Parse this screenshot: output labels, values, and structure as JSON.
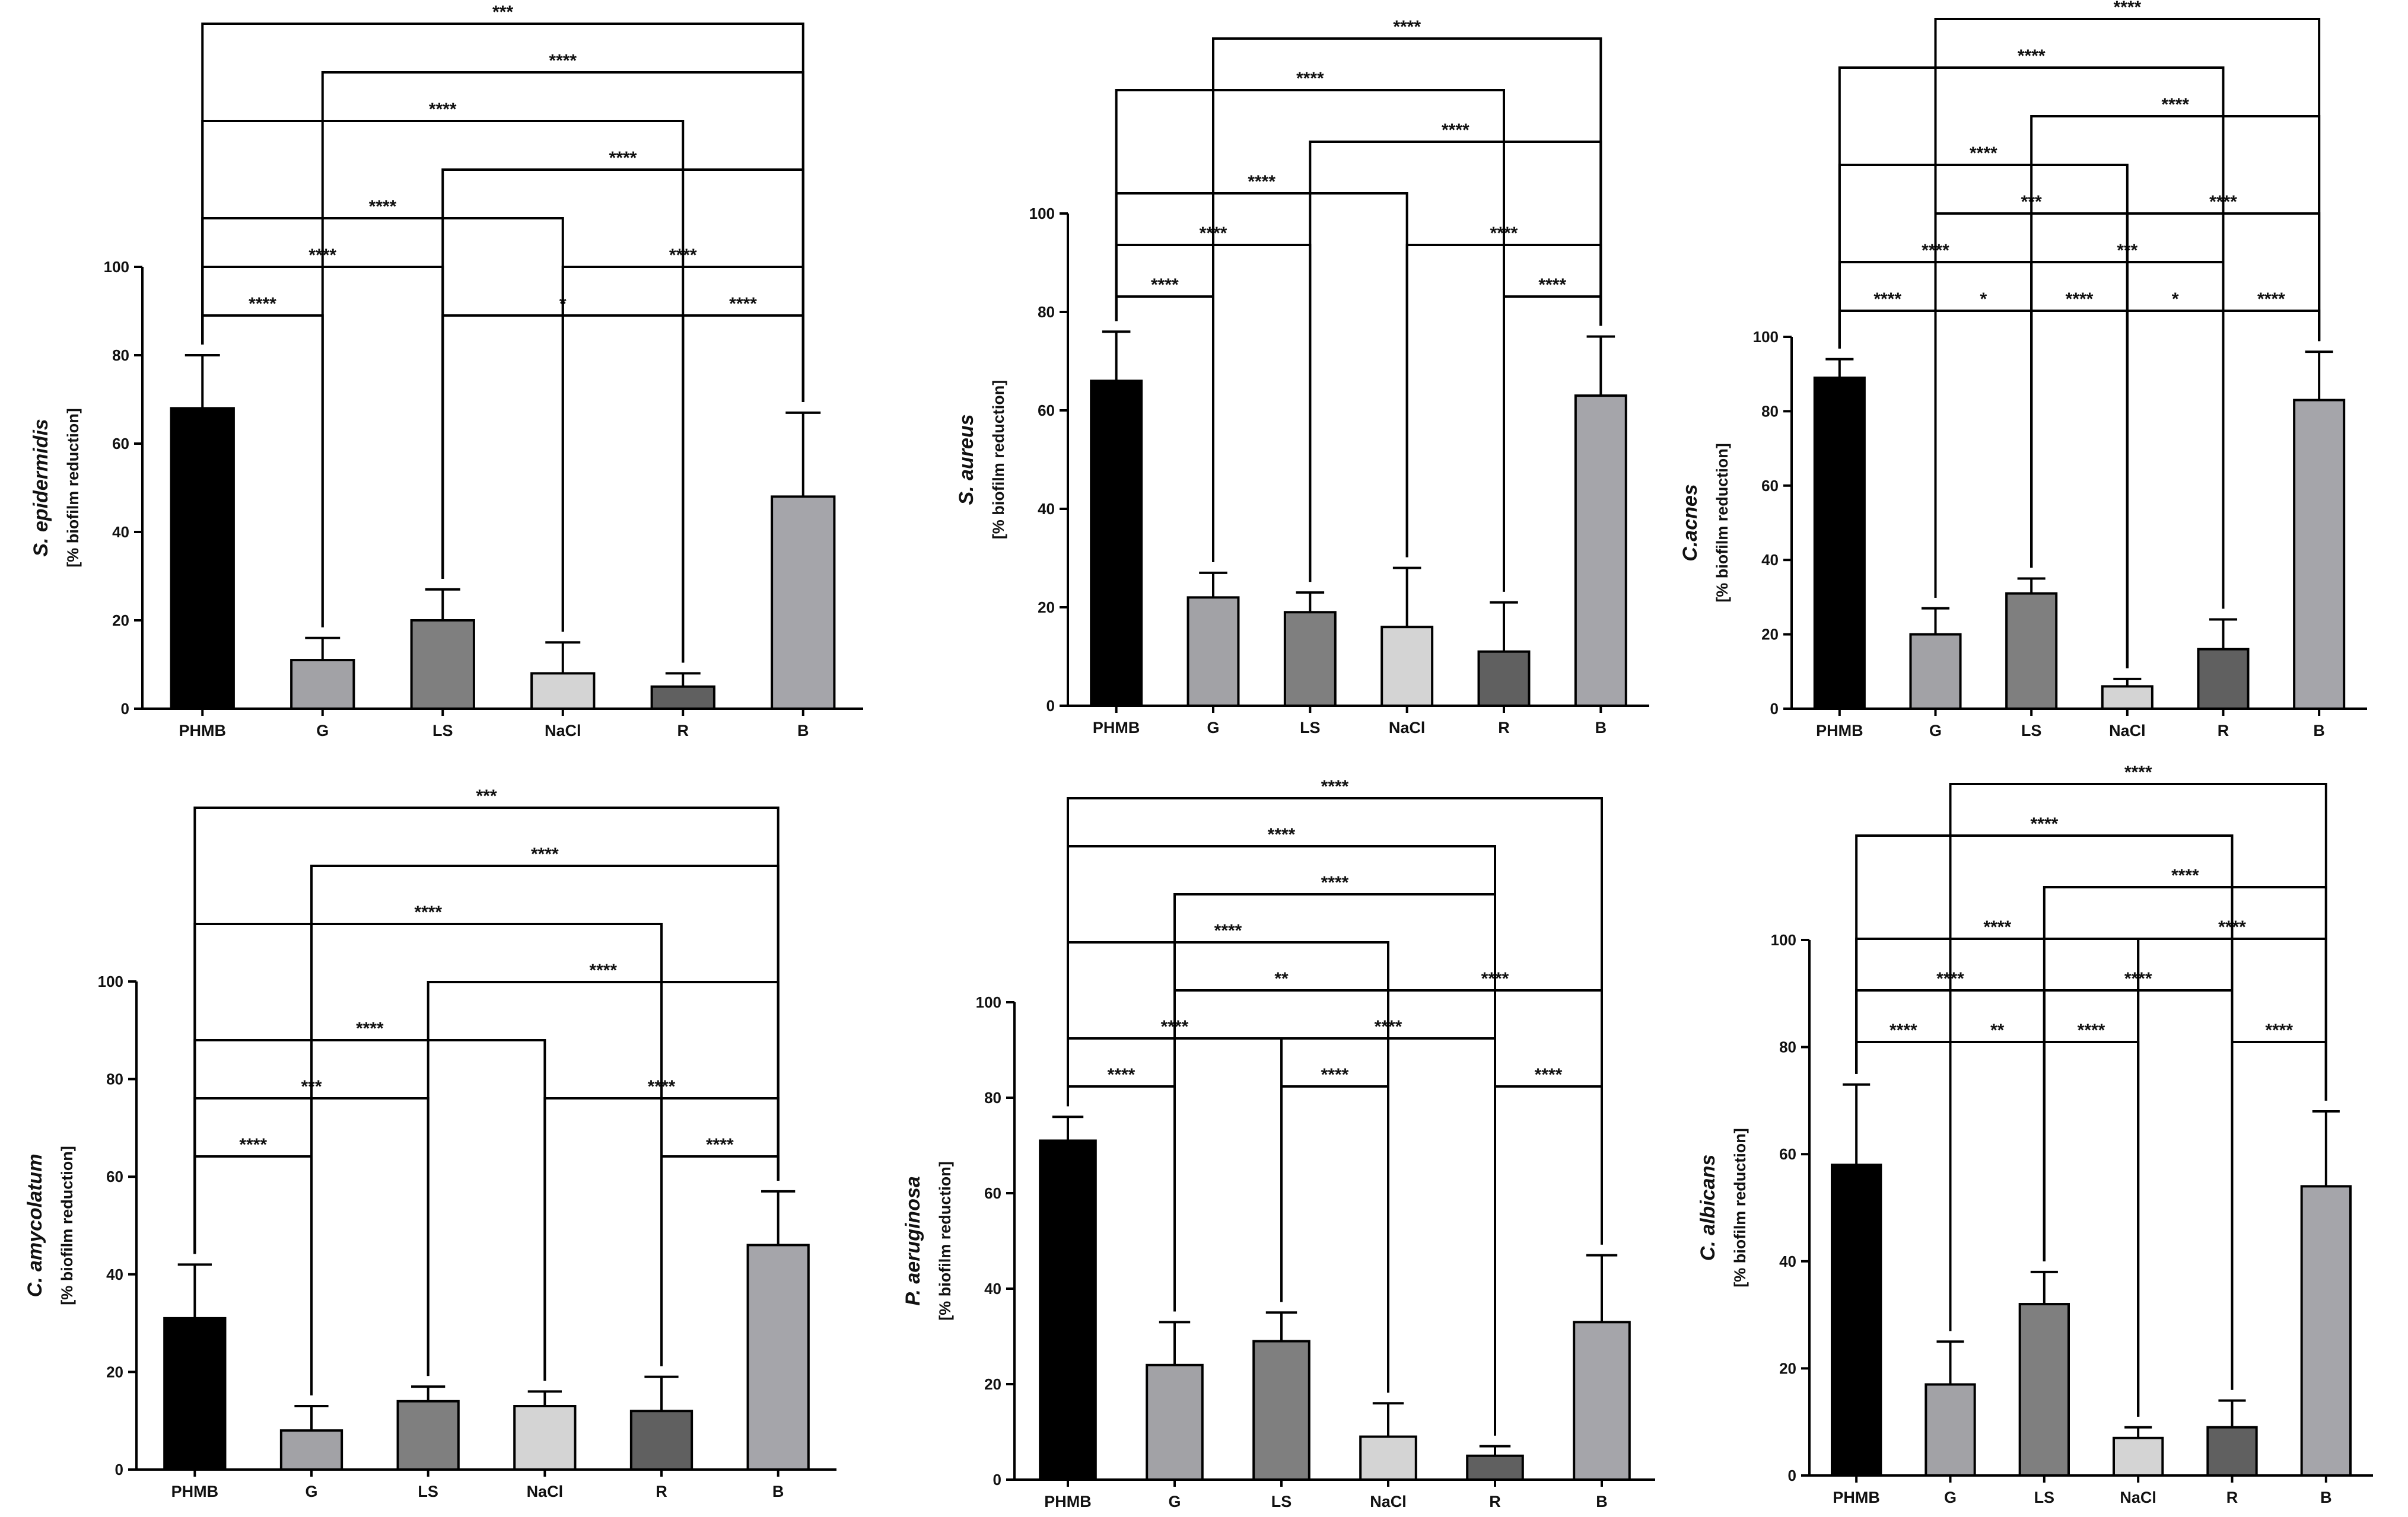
{
  "figure": {
    "background": "#ffffff"
  },
  "chart_data": [
    {
      "type": "bar",
      "title": "S. epidermidis",
      "ylabel": "[% biofilm reduction]",
      "categories": [
        "PHMB",
        "G",
        "LS",
        "NaCl",
        "R",
        "B"
      ],
      "values": [
        68,
        11,
        20,
        8,
        5,
        48
      ],
      "errors": [
        12,
        5,
        7,
        7,
        3,
        19
      ],
      "colors": [
        "#000000",
        "#a2a2a6",
        "#7f7f7f",
        "#d4d4d4",
        "#606060",
        "#a5a5aa"
      ],
      "ylim": [
        0,
        100
      ],
      "yticks": [
        "0",
        "20",
        "40",
        "60",
        "80",
        "100"
      ],
      "comparisons": [
        {
          "from": 0,
          "to": 1,
          "label": "****"
        },
        {
          "from": 4,
          "to": 5,
          "label": "****"
        },
        {
          "from": 2,
          "to": 4,
          "label": "*"
        },
        {
          "from": 0,
          "to": 2,
          "label": "****"
        },
        {
          "from": 3,
          "to": 5,
          "label": "****"
        },
        {
          "from": 0,
          "to": 3,
          "label": "****"
        },
        {
          "from": 2,
          "to": 5,
          "label": "****"
        },
        {
          "from": 0,
          "to": 4,
          "label": "****"
        },
        {
          "from": 1,
          "to": 5,
          "label": "****"
        },
        {
          "from": 0,
          "to": 5,
          "label": "***"
        }
      ]
    },
    {
      "type": "bar",
      "title": "S. aureus",
      "ylabel": "[% biofilm reduction]",
      "categories": [
        "PHMB",
        "G",
        "LS",
        "NaCl",
        "R",
        "B"
      ],
      "values": [
        66,
        22,
        19,
        16,
        11,
        63
      ],
      "errors": [
        10,
        5,
        4,
        12,
        10,
        12
      ],
      "colors": [
        "#000000",
        "#a2a2a6",
        "#7f7f7f",
        "#d4d4d4",
        "#606060",
        "#a5a5aa"
      ],
      "ylim": [
        0,
        100
      ],
      "yticks": [
        "0",
        "20",
        "40",
        "60",
        "80",
        "100"
      ],
      "comparisons": [
        {
          "from": 0,
          "to": 1,
          "label": "****"
        },
        {
          "from": 4,
          "to": 5,
          "label": "****"
        },
        {
          "from": 0,
          "to": 2,
          "label": "****"
        },
        {
          "from": 3,
          "to": 5,
          "label": "****"
        },
        {
          "from": 0,
          "to": 3,
          "label": "****"
        },
        {
          "from": 2,
          "to": 5,
          "label": "****"
        },
        {
          "from": 0,
          "to": 4,
          "label": "****"
        },
        {
          "from": 1,
          "to": 5,
          "label": "****"
        }
      ]
    },
    {
      "type": "bar",
      "title": "C.acnes",
      "ylabel": "[% biofilm reduction]",
      "categories": [
        "PHMB",
        "G",
        "LS",
        "NaCl",
        "R",
        "B"
      ],
      "values": [
        89,
        20,
        31,
        6,
        16,
        83
      ],
      "errors": [
        5,
        7,
        4,
        2,
        8,
        13
      ],
      "colors": [
        "#000000",
        "#a2a2a6",
        "#7f7f7f",
        "#d4d4d4",
        "#606060",
        "#a5a5aa"
      ],
      "ylim": [
        0,
        100
      ],
      "yticks": [
        "0",
        "20",
        "40",
        "60",
        "80",
        "100"
      ],
      "comparisons": [
        {
          "from": 0,
          "to": 1,
          "label": "****"
        },
        {
          "from": 1,
          "to": 2,
          "label": "*"
        },
        {
          "from": 2,
          "to": 3,
          "label": "****"
        },
        {
          "from": 3,
          "to": 4,
          "label": "*"
        },
        {
          "from": 4,
          "to": 5,
          "label": "****"
        },
        {
          "from": 0,
          "to": 2,
          "label": "****"
        },
        {
          "from": 2,
          "to": 4,
          "label": "***"
        },
        {
          "from": 1,
          "to": 3,
          "label": "***"
        },
        {
          "from": 3,
          "to": 5,
          "label": "****"
        },
        {
          "from": 0,
          "to": 3,
          "label": "****"
        },
        {
          "from": 2,
          "to": 5,
          "label": "****"
        },
        {
          "from": 0,
          "to": 4,
          "label": "****"
        },
        {
          "from": 1,
          "to": 5,
          "label": "****"
        }
      ]
    },
    {
      "type": "bar",
      "title": "C. amycolatum",
      "ylabel": "[% biofilm reduction]",
      "categories": [
        "PHMB",
        "G",
        "LS",
        "NaCl",
        "R",
        "B"
      ],
      "values": [
        31,
        8,
        14,
        13,
        12,
        46
      ],
      "errors": [
        11,
        5,
        3,
        3,
        7,
        11
      ],
      "colors": [
        "#000000",
        "#a2a2a6",
        "#7f7f7f",
        "#d4d4d4",
        "#606060",
        "#a5a5aa"
      ],
      "ylim": [
        0,
        100
      ],
      "yticks": [
        "0",
        "20",
        "40",
        "60",
        "80",
        "100"
      ],
      "comparisons": [
        {
          "from": 0,
          "to": 1,
          "label": "****"
        },
        {
          "from": 4,
          "to": 5,
          "label": "****"
        },
        {
          "from": 0,
          "to": 2,
          "label": "***"
        },
        {
          "from": 3,
          "to": 5,
          "label": "****"
        },
        {
          "from": 0,
          "to": 3,
          "label": "****"
        },
        {
          "from": 2,
          "to": 5,
          "label": "****"
        },
        {
          "from": 0,
          "to": 4,
          "label": "****"
        },
        {
          "from": 1,
          "to": 5,
          "label": "****"
        },
        {
          "from": 0,
          "to": 5,
          "label": "***"
        }
      ]
    },
    {
      "type": "bar",
      "title": "P. aeruginosa",
      "ylabel": "[% biofilm reduction]",
      "categories": [
        "PHMB",
        "G",
        "LS",
        "NaCl",
        "R",
        "B"
      ],
      "values": [
        71,
        24,
        29,
        9,
        5,
        33
      ],
      "errors": [
        5,
        9,
        6,
        7,
        2,
        14
      ],
      "colors": [
        "#000000",
        "#a2a2a6",
        "#7f7f7f",
        "#d4d4d4",
        "#606060",
        "#a5a5aa"
      ],
      "ylim": [
        0,
        100
      ],
      "yticks": [
        "0",
        "20",
        "40",
        "60",
        "80",
        "100"
      ],
      "comparisons": [
        {
          "from": 0,
          "to": 1,
          "label": "****"
        },
        {
          "from": 2,
          "to": 3,
          "label": "****"
        },
        {
          "from": 4,
          "to": 5,
          "label": "****"
        },
        {
          "from": 0,
          "to": 2,
          "label": "****"
        },
        {
          "from": 2,
          "to": 4,
          "label": "****"
        },
        {
          "from": 1,
          "to": 3,
          "label": "**"
        },
        {
          "from": 3,
          "to": 5,
          "label": "****"
        },
        {
          "from": 0,
          "to": 3,
          "label": "****"
        },
        {
          "from": 1,
          "to": 4,
          "label": "****"
        },
        {
          "from": 0,
          "to": 4,
          "label": "****"
        },
        {
          "from": 0,
          "to": 5,
          "label": "****"
        }
      ]
    },
    {
      "type": "bar",
      "title": "C. albicans",
      "ylabel": "[% biofilm reduction]",
      "categories": [
        "PHMB",
        "G",
        "LS",
        "NaCl",
        "R",
        "B"
      ],
      "values": [
        58,
        17,
        32,
        7,
        9,
        54
      ],
      "errors": [
        15,
        8,
        6,
        2,
        5,
        14
      ],
      "colors": [
        "#000000",
        "#a2a2a6",
        "#7f7f7f",
        "#d4d4d4",
        "#606060",
        "#a5a5aa"
      ],
      "ylim": [
        0,
        100
      ],
      "yticks": [
        "0",
        "20",
        "40",
        "60",
        "80",
        "100"
      ],
      "comparisons": [
        {
          "from": 0,
          "to": 1,
          "label": "****"
        },
        {
          "from": 1,
          "to": 2,
          "label": "**"
        },
        {
          "from": 2,
          "to": 3,
          "label": "****"
        },
        {
          "from": 4,
          "to": 5,
          "label": "****"
        },
        {
          "from": 0,
          "to": 2,
          "label": "****"
        },
        {
          "from": 2,
          "to": 4,
          "label": "****"
        },
        {
          "from": 0,
          "to": 3,
          "label": "****"
        },
        {
          "from": 3,
          "to": 5,
          "label": "****"
        },
        {
          "from": 2,
          "to": 5,
          "label": "****"
        },
        {
          "from": 0,
          "to": 4,
          "label": "****"
        },
        {
          "from": 1,
          "to": 5,
          "label": "****"
        }
      ]
    }
  ]
}
